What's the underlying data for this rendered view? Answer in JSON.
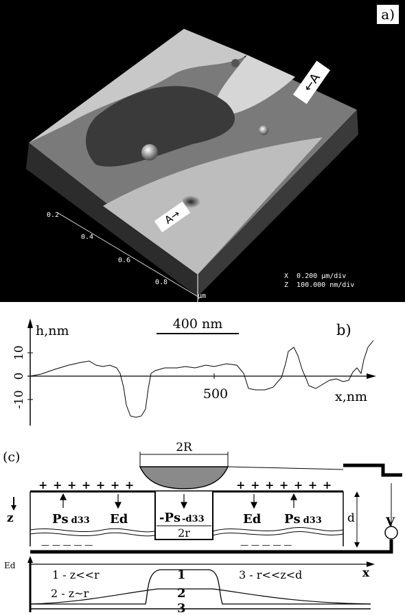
{
  "panel_a": {
    "label": "a)",
    "marker_right": "A",
    "marker_left": "A",
    "scale": {
      "x_line": "X  0.200 μm/div",
      "z_line": "Z  100.000 nm/div"
    },
    "ticks": [
      "0.2",
      "0.4",
      "0.6",
      "0.8",
      "μm"
    ]
  },
  "panel_b": {
    "label": "b)",
    "scalebar": "400 nm",
    "y_axis_label": "h,nm",
    "x_axis_label": "x,nm",
    "y_ticks": [
      "10",
      "0",
      "-10"
    ],
    "x_tick": "500"
  },
  "panel_c": {
    "label": "(c)",
    "dim_2R": "2R",
    "dim_2r": "2r",
    "plus_left": "+ + + + + + +",
    "plus_right": "+ + + + + + +",
    "ps_left": "Ps",
    "ps_left_sub": "d33",
    "ed_left": "Ed",
    "ps_mid": "-Ps",
    "ps_mid_sub": "-d33",
    "ed_right": "Ed",
    "ps_right": "Ps",
    "ps_right_sub": "d33",
    "z_label": "z",
    "d_label": "d",
    "v_label": "V",
    "minus_left": "— — — — —",
    "minus_right": "— — — — —"
  },
  "panel_d": {
    "y_label": "Ed",
    "x_label": "x",
    "curve1_num": "1",
    "curve2_num": "2",
    "curve3_num": "3",
    "legend1": "1 - z<<r",
    "legend2": "2 - z~r",
    "legend3": "3 - r<<z<d"
  }
}
